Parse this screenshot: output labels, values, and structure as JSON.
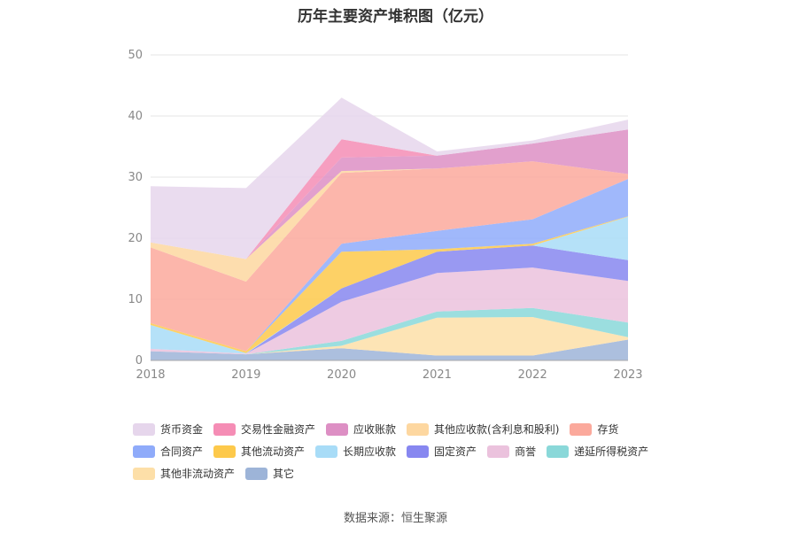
{
  "chart_data": {
    "type": "area",
    "stacked": true,
    "title": "历年主要资产堆积图（亿元）",
    "x": [
      "2018",
      "2019",
      "2020",
      "2021",
      "2022",
      "2023"
    ],
    "ylim": [
      0,
      50
    ],
    "yticks": [
      0,
      10,
      20,
      30,
      40,
      50
    ],
    "grid": true,
    "legend_position": "bottom",
    "series": [
      {
        "name": "货币资金",
        "color": "#e6d6ec",
        "values": [
          9.2,
          11.6,
          6.8,
          0.7,
          0.5,
          1.6
        ]
      },
      {
        "name": "交易性金融资产",
        "color": "#f58db5",
        "values": [
          0,
          0,
          3.0,
          0,
          0,
          0
        ]
      },
      {
        "name": "应收账款",
        "color": "#dd8fc4",
        "values": [
          0,
          0,
          2.2,
          2.1,
          2.9,
          7.3
        ]
      },
      {
        "name": "其他应收款(含利息和股利)",
        "color": "#fdd7a0",
        "values": [
          0.8,
          3.7,
          0.3,
          0,
          0,
          0
        ]
      },
      {
        "name": "存货",
        "color": "#fba99c",
        "values": [
          12.4,
          11.4,
          11.6,
          10.2,
          9.5,
          0.8
        ]
      },
      {
        "name": "合同资产",
        "color": "#8fabfa",
        "values": [
          0,
          0,
          1.3,
          3.0,
          4.0,
          6.1
        ]
      },
      {
        "name": "其他流动资产",
        "color": "#fdc94b",
        "values": [
          0.3,
          0.3,
          6.0,
          0.4,
          0.3,
          0.1
        ]
      },
      {
        "name": "长期应收款",
        "color": "#a8dcf7",
        "values": [
          3.9,
          0.1,
          0,
          0,
          0,
          7.1
        ]
      },
      {
        "name": "固定资产",
        "color": "#8787f0",
        "values": [
          0,
          0,
          2.2,
          3.5,
          3.6,
          3.4
        ]
      },
      {
        "name": "商誉",
        "color": "#ebc2dd",
        "values": [
          0.4,
          0.1,
          6.4,
          6.3,
          6.6,
          6.8
        ]
      },
      {
        "name": "递延所得税资产",
        "color": "#8ad8d9",
        "values": [
          0,
          0,
          0.8,
          1.0,
          1.5,
          2.4
        ]
      },
      {
        "name": "其他非流动资产",
        "color": "#fddfa8",
        "values": [
          0,
          0,
          0.4,
          6.2,
          6.3,
          0.4
        ]
      },
      {
        "name": "其它",
        "color": "#9db4d8",
        "values": [
          1.5,
          1.0,
          2.0,
          0.8,
          0.8,
          3.4
        ]
      }
    ]
  },
  "source_text": "数据来源：恒生聚源"
}
